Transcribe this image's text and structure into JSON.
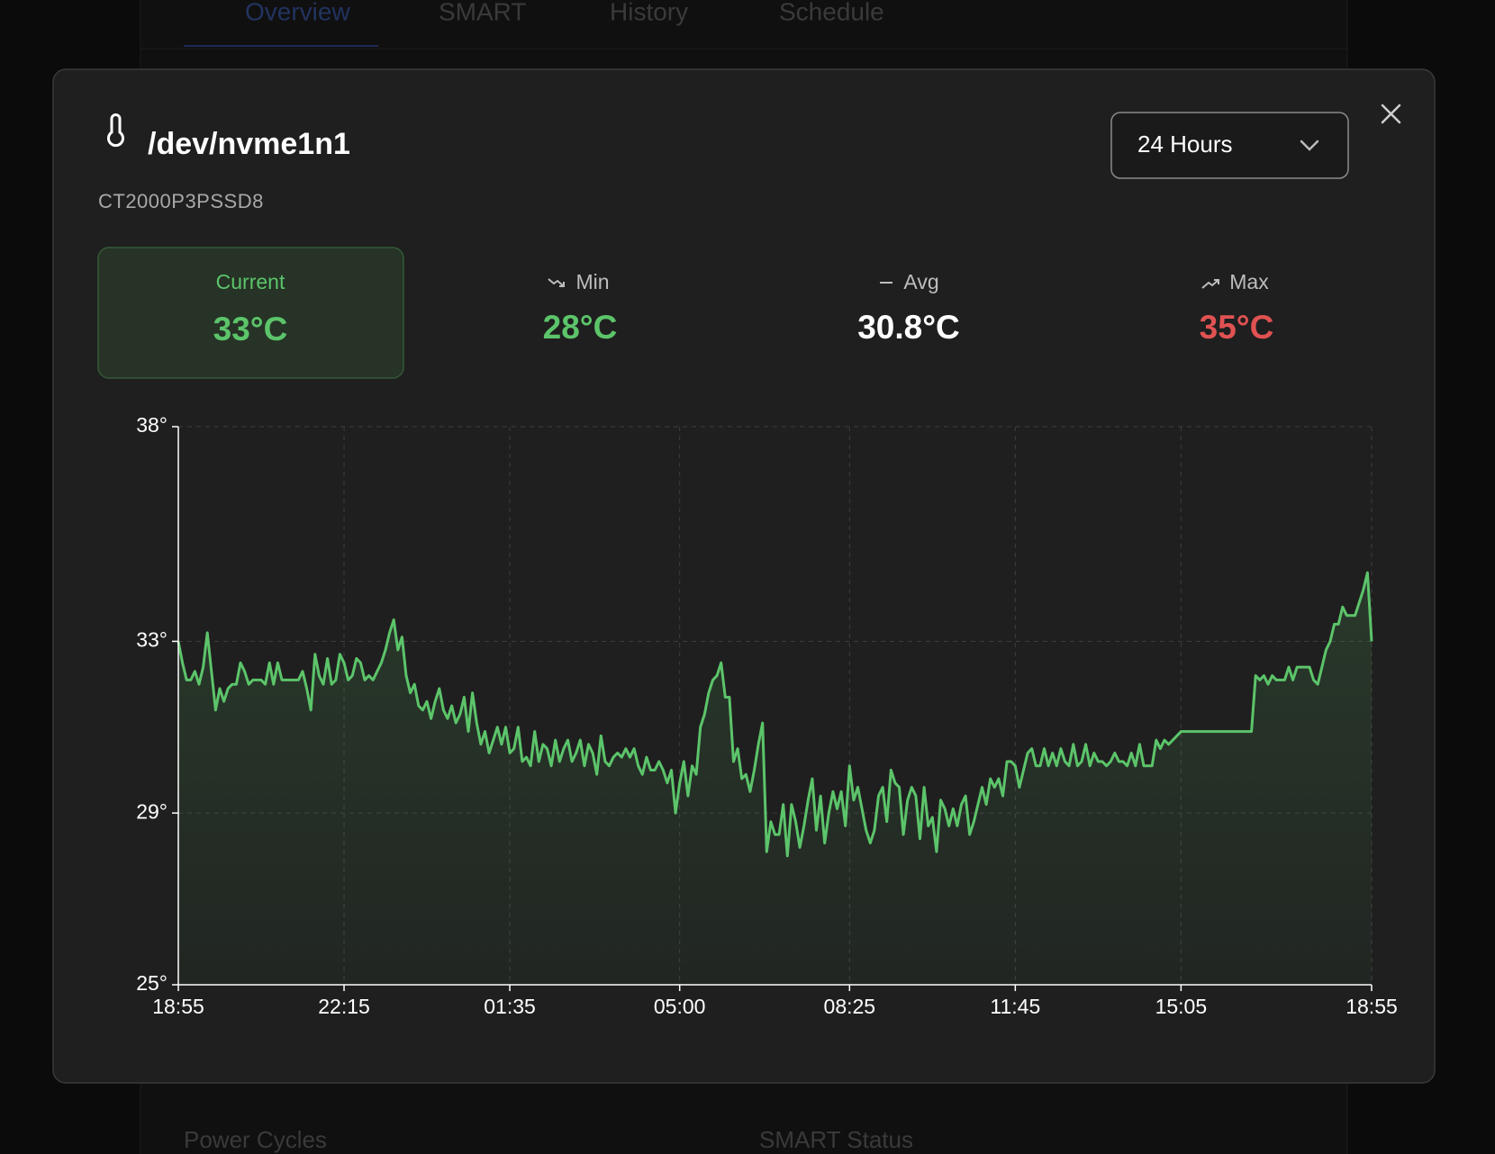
{
  "background": {
    "tabs": [
      "Overview",
      "SMART",
      "History",
      "Schedule"
    ],
    "labels": [
      "Power Cycles",
      "SMART Status"
    ]
  },
  "header": {
    "title": "/dev/nvme1n1",
    "subtitle": "CT2000P3PSSD8",
    "range": "24 Hours"
  },
  "stats": [
    {
      "label": "Current",
      "value": "33°C",
      "color": "#5cc46a"
    },
    {
      "label": "Min",
      "value": "28°C",
      "color": "#5cc46a"
    },
    {
      "label": "Avg",
      "value": "30.8°C",
      "color": "#ffffff"
    },
    {
      "label": "Max",
      "value": "35°C",
      "color": "#e05252"
    }
  ],
  "chart_data": {
    "type": "line",
    "color": "#5cc46a",
    "categories": [
      "18:55",
      null,
      null,
      null,
      null,
      null,
      null,
      null,
      null,
      null,
      null,
      null,
      null,
      null,
      null,
      null,
      null,
      null,
      null,
      null,
      null,
      null,
      null,
      null,
      null,
      null,
      null,
      null,
      null,
      null,
      null,
      null,
      null,
      null,
      null,
      null,
      null,
      null,
      null,
      null,
      "22:15",
      null,
      null,
      null,
      null,
      null,
      null,
      null,
      null,
      null,
      null,
      null,
      null,
      null,
      null,
      null,
      null,
      null,
      null,
      null,
      null,
      null,
      null,
      null,
      null,
      null,
      null,
      null,
      null,
      null,
      null,
      null,
      null,
      null,
      null,
      null,
      null,
      null,
      null,
      null,
      "01:35",
      null,
      null,
      null,
      null,
      null,
      null,
      null,
      null,
      null,
      null,
      null,
      null,
      null,
      null,
      null,
      null,
      null,
      null,
      null,
      null,
      null,
      null,
      null,
      null,
      null,
      null,
      null,
      null,
      null,
      null,
      null,
      null,
      null,
      null,
      null,
      null,
      null,
      null,
      null,
      null,
      "05:00",
      null,
      null,
      null,
      null,
      null,
      null,
      null,
      null,
      null,
      null,
      null,
      null,
      null,
      null,
      null,
      null,
      null,
      null,
      null,
      null,
      null,
      null,
      null,
      null,
      null,
      null,
      null,
      null,
      null,
      null,
      null,
      null,
      null,
      null,
      null,
      null,
      null,
      null,
      null,
      null,
      "08:25",
      null,
      null,
      null,
      null,
      null,
      null,
      null,
      null,
      null,
      null,
      null,
      null,
      null,
      null,
      null,
      null,
      null,
      null,
      null,
      null,
      null,
      null,
      null,
      null,
      null,
      null,
      null,
      null,
      null,
      null,
      null,
      null,
      null,
      null,
      null,
      null,
      null,
      null,
      null,
      "11:45",
      null,
      null,
      null,
      null,
      null,
      null,
      null,
      null,
      null,
      null,
      null,
      null,
      null,
      null,
      null,
      null,
      null,
      null,
      null,
      null,
      null,
      null,
      null,
      null,
      null,
      null,
      null,
      null,
      null,
      null,
      null,
      null,
      null,
      null,
      null,
      null,
      null,
      null,
      null,
      "15:05",
      null,
      null,
      null,
      null,
      null,
      null,
      null,
      null,
      null,
      null,
      null,
      null,
      null,
      null,
      null,
      null,
      null,
      null,
      null,
      null,
      null,
      null,
      null,
      null,
      null,
      null,
      null,
      null,
      null,
      null,
      null,
      null,
      null,
      null,
      null,
      null,
      null,
      null,
      null,
      null,
      null,
      null,
      null,
      null,
      null,
      "18:55"
    ],
    "values": [
      33.0,
      32.5,
      32.1,
      32.1,
      32.3,
      32.0,
      32.4,
      33.2,
      32.3,
      31.4,
      31.9,
      31.6,
      31.9,
      32.0,
      32.0,
      32.5,
      32.3,
      32.0,
      32.1,
      32.1,
      32.1,
      32.0,
      32.5,
      32.0,
      32.5,
      32.1,
      32.1,
      32.1,
      32.1,
      32.1,
      32.3,
      31.9,
      31.4,
      32.7,
      32.2,
      32.0,
      32.6,
      32.0,
      32.1,
      32.7,
      32.5,
      32.1,
      32.2,
      32.6,
      32.5,
      32.1,
      32.2,
      32.1,
      32.3,
      32.5,
      32.8,
      33.2,
      33.5,
      32.8,
      33.1,
      32.2,
      31.8,
      32.0,
      31.5,
      31.4,
      31.6,
      31.2,
      31.6,
      31.9,
      31.4,
      31.2,
      31.5,
      31.1,
      31.3,
      31.7,
      30.9,
      31.8,
      31.1,
      30.6,
      30.9,
      30.4,
      30.7,
      31.0,
      30.6,
      31.0,
      30.4,
      30.5,
      31.0,
      30.2,
      30.3,
      30.1,
      30.9,
      30.2,
      30.6,
      30.5,
      30.1,
      30.7,
      30.2,
      30.5,
      30.7,
      30.2,
      30.4,
      30.7,
      30.1,
      30.6,
      30.4,
      29.9,
      30.8,
      30.2,
      30.1,
      30.3,
      30.4,
      30.3,
      30.5,
      30.3,
      30.5,
      30.1,
      29.9,
      30.3,
      30.0,
      30.0,
      30.2,
      30.0,
      29.7,
      30.0,
      29.0,
      29.7,
      30.2,
      29.4,
      30.1,
      29.9,
      31.0,
      31.3,
      31.8,
      32.1,
      32.2,
      32.5,
      31.7,
      31.7,
      30.2,
      30.5,
      29.8,
      29.9,
      29.5,
      30.0,
      30.6,
      31.1,
      28.1,
      28.8,
      28.5,
      28.5,
      29.2,
      28.0,
      29.2,
      28.8,
      28.2,
      28.7,
      29.3,
      29.8,
      28.6,
      29.4,
      28.3,
      29.0,
      29.5,
      29.1,
      29.5,
      28.7,
      30.1,
      29.3,
      29.6,
      29.1,
      28.6,
      28.3,
      28.6,
      29.4,
      29.6,
      28.8,
      30.0,
      29.7,
      29.6,
      28.5,
      29.3,
      29.6,
      29.4,
      28.4,
      29.6,
      28.7,
      28.9,
      28.1,
      29.3,
      29.1,
      28.7,
      29.1,
      28.7,
      29.2,
      29.4,
      28.5,
      28.8,
      29.2,
      29.6,
      29.2,
      29.8,
      29.6,
      29.8,
      29.4,
      30.2,
      30.2,
      30.1,
      29.6,
      30.0,
      30.4,
      30.5,
      30.1,
      30.1,
      30.5,
      30.1,
      30.4,
      30.1,
      30.5,
      30.2,
      30.1,
      30.6,
      30.1,
      30.2,
      30.6,
      30.1,
      30.4,
      30.2,
      30.2,
      30.1,
      30.2,
      30.4,
      30.2,
      30.2,
      30.1,
      30.4,
      30.1,
      30.6,
      30.1,
      30.1,
      30.1,
      30.7,
      30.5,
      30.7,
      30.6,
      30.7,
      30.8,
      30.9,
      30.9,
      30.9,
      30.9,
      30.9,
      30.9,
      30.9,
      30.9,
      30.9,
      30.9,
      30.9,
      30.9,
      30.9,
      30.9,
      30.9,
      30.9,
      30.9,
      30.9,
      32.2,
      32.1,
      32.2,
      32.0,
      32.2,
      32.1,
      32.1,
      32.1,
      32.4,
      32.1,
      32.4,
      32.4,
      32.4,
      32.4,
      32.1,
      32.0,
      32.4,
      32.8,
      33.0,
      33.4,
      33.4,
      33.8,
      33.6,
      33.6,
      33.6,
      33.9,
      34.2,
      34.6,
      33.0
    ],
    "ylim": [
      25,
      38
    ],
    "yticks": [
      {
        "value": 25,
        "label": "25°"
      },
      {
        "value": 29,
        "label": "29°"
      },
      {
        "value": 33,
        "label": "33°"
      },
      {
        "value": 38,
        "label": "38°"
      }
    ],
    "grid": true
  }
}
